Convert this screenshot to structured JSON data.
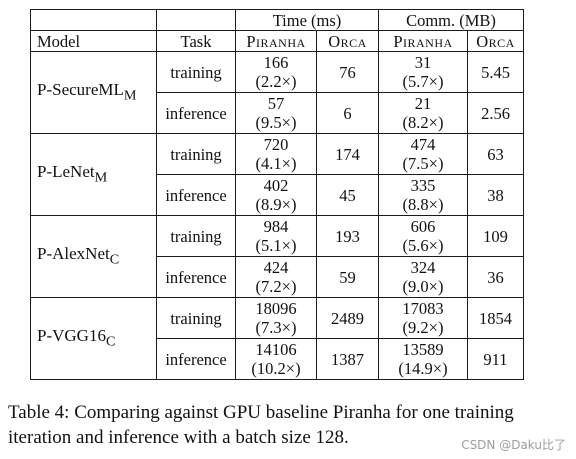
{
  "table": {
    "group_headers": {
      "time": "Time (ms)",
      "comm": "Comm. (MB)"
    },
    "col_headers": {
      "model": "Model",
      "task": "Task",
      "time_piranha": "Piranha",
      "time_orca": "Orca",
      "comm_piranha": "Piranha",
      "comm_orca": "Orca"
    },
    "rows": [
      {
        "model_base": "P-SecureML",
        "model_sub": "M",
        "training": {
          "t_p": "166",
          "t_p_ratio": "(2.2×)",
          "t_o": "76",
          "c_p": "31",
          "c_p_ratio": "(5.7×)",
          "c_o": "5.45"
        },
        "inference": {
          "t_p": "57",
          "t_p_ratio": "(9.5×)",
          "t_o": "6",
          "c_p": "21",
          "c_p_ratio": "(8.2×)",
          "c_o": "2.56"
        }
      },
      {
        "model_base": "P-LeNet",
        "model_sub": "M",
        "training": {
          "t_p": "720",
          "t_p_ratio": "(4.1×)",
          "t_o": "174",
          "c_p": "474",
          "c_p_ratio": "(7.5×)",
          "c_o": "63"
        },
        "inference": {
          "t_p": "402",
          "t_p_ratio": "(8.9×)",
          "t_o": "45",
          "c_p": "335",
          "c_p_ratio": "(8.8×)",
          "c_o": "38"
        }
      },
      {
        "model_base": "P-AlexNet",
        "model_sub": "C",
        "training": {
          "t_p": "984",
          "t_p_ratio": "(5.1×)",
          "t_o": "193",
          "c_p": "606",
          "c_p_ratio": "(5.6×)",
          "c_o": "109"
        },
        "inference": {
          "t_p": "424",
          "t_p_ratio": "(7.2×)",
          "t_o": "59",
          "c_p": "324",
          "c_p_ratio": "(9.0×)",
          "c_o": "36"
        }
      },
      {
        "model_base": "P-VGG16",
        "model_sub": "C",
        "training": {
          "t_p": "18096",
          "t_p_ratio": "(7.3×)",
          "t_o": "2489",
          "c_p": "17083",
          "c_p_ratio": "(9.2×)",
          "c_o": "1854"
        },
        "inference": {
          "t_p": "14106",
          "t_p_ratio": "(10.2×)",
          "t_o": "1387",
          "c_p": "13589",
          "c_p_ratio": "(14.9×)",
          "c_o": "911"
        }
      }
    ],
    "task_labels": {
      "training": "training",
      "inference": "inference"
    }
  },
  "caption": "Table 4: Comparing against GPU baseline Piranha for one training iteration and inference with a batch size 128.",
  "watermark": "CSDN @Daku比了"
}
